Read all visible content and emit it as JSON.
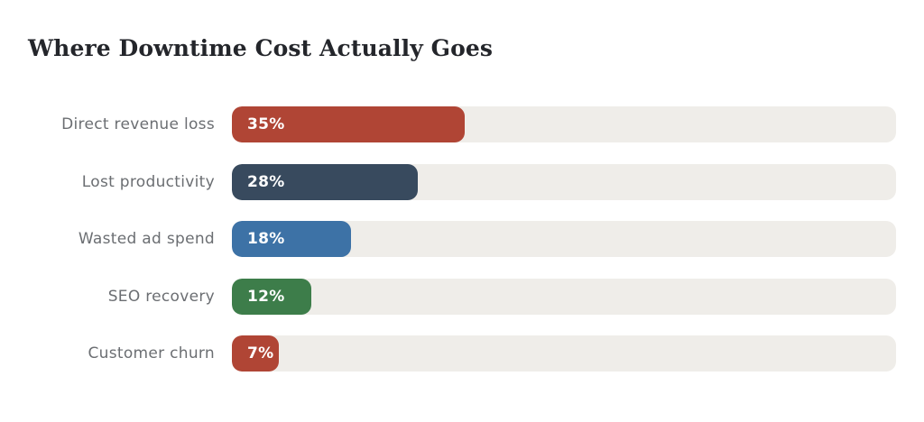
{
  "chart_data": {
    "type": "bar",
    "orientation": "horizontal",
    "title": "Where Downtime Cost Actually Goes",
    "categories": [
      "Direct revenue loss",
      "Lost productivity",
      "Wasted ad spend",
      "SEO recovery",
      "Customer churn"
    ],
    "values": [
      35,
      28,
      18,
      12,
      7
    ],
    "value_labels": [
      "35%",
      "28%",
      "18%",
      "12%",
      "7%"
    ],
    "bar_colors": [
      "#b04535",
      "#384a5e",
      "#3d72a6",
      "#3d7d4a",
      "#b04535"
    ],
    "track_color": "#efede9",
    "title_color": "#24262b",
    "label_color": "#6b6e72",
    "value_label_color": "#ffffff",
    "xlim": [
      0,
      100
    ],
    "grid": false,
    "legend": false
  }
}
